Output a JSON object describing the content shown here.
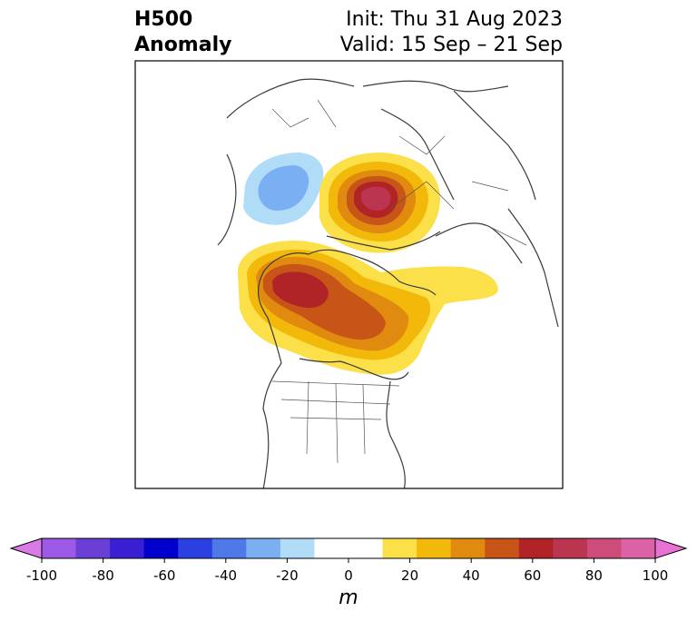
{
  "title": {
    "left_line1": "H500",
    "left_line2": "Anomaly",
    "right_line1": "Init: Thu 31 Aug 2023",
    "right_line2": "Valid: 15 Sep – 21 Sep"
  },
  "colorbar": {
    "unit": "m",
    "ticks": [
      "-100",
      "-80",
      "-60",
      "-40",
      "-20",
      "0",
      "20",
      "40",
      "60",
      "80",
      "100"
    ],
    "colors": [
      "#9b59e6",
      "#6a3fd6",
      "#3a1fd2",
      "#0000cc",
      "#2a40e0",
      "#4f78e8",
      "#7ab0f2",
      "#b1dcf8",
      "#ffffff",
      "#ffffff",
      "#fbe04a",
      "#f2b80a",
      "#e08a10",
      "#c85518",
      "#b02428",
      "#bb3450",
      "#cd4c7a",
      "#dc62a8"
    ],
    "under_color": "#d97ae6",
    "over_color": "#e872d4"
  }
}
